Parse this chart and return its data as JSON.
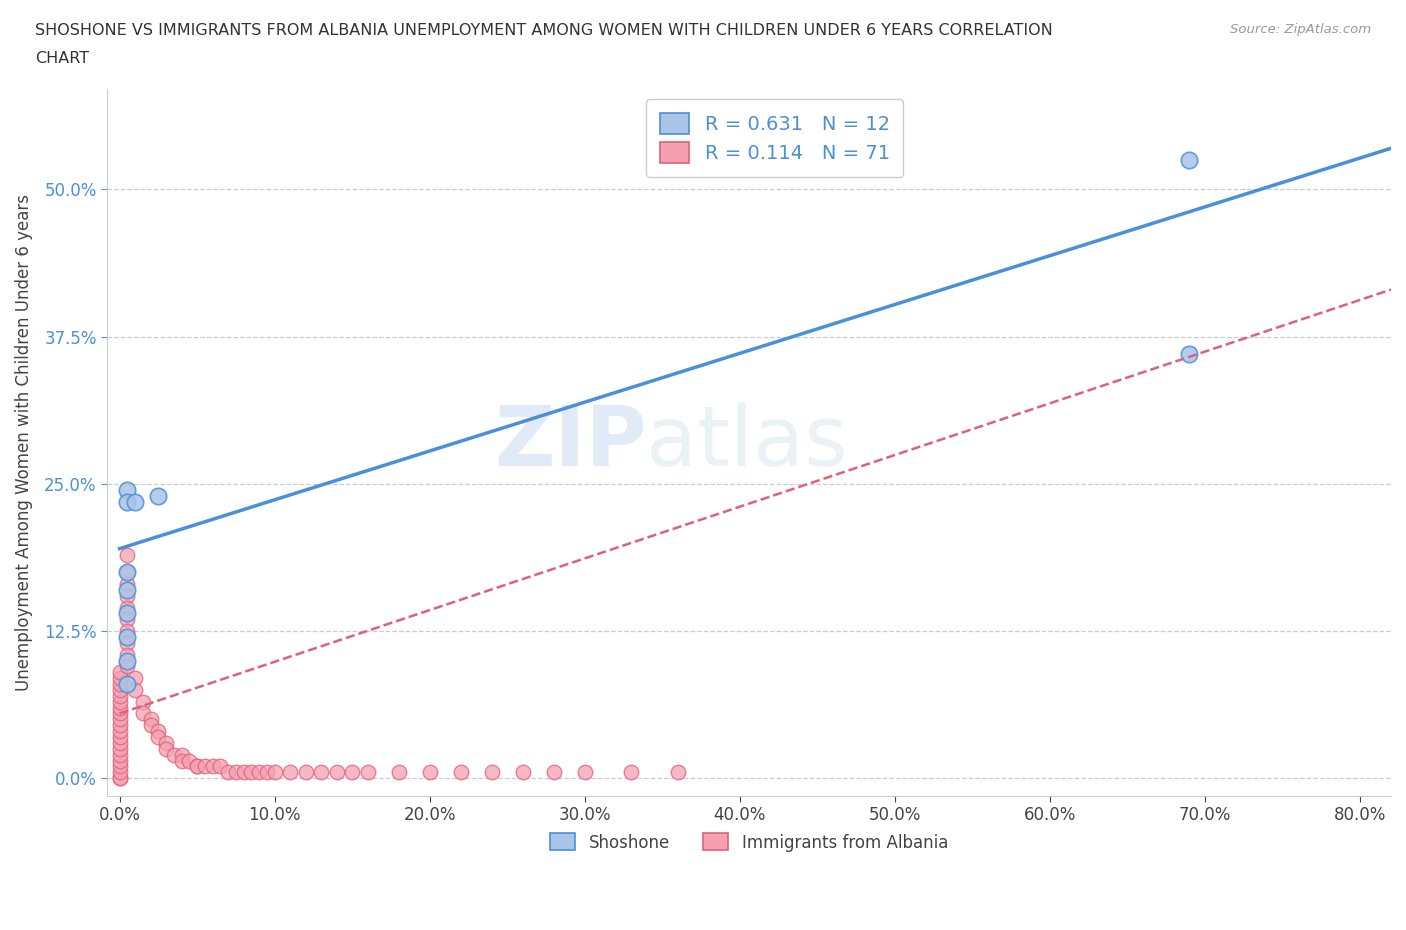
{
  "title_line1": "SHOSHONE VS IMMIGRANTS FROM ALBANIA UNEMPLOYMENT AMONG WOMEN WITH CHILDREN UNDER 6 YEARS CORRELATION",
  "title_line2": "CHART",
  "source": "Source: ZipAtlas.com",
  "ylabel": "Unemployment Among Women with Children Under 6 years",
  "background_color": "#ffffff",
  "shoshone_color": "#aac4e8",
  "shoshone_line_color": "#4a90d9",
  "albania_color": "#f4a0b0",
  "albania_line_color": "#e0607a",
  "watermark_zip": "ZIP",
  "watermark_atlas": "atlas",
  "legend_R1": "0.631",
  "legend_N1": "12",
  "legend_R2": "0.114",
  "legend_N2": "71",
  "shoshone_x": [
    0.005,
    0.005,
    0.005,
    0.005,
    0.005,
    0.005,
    0.005,
    0.005,
    0.01,
    0.025,
    0.69,
    0.69
  ],
  "shoshone_y": [
    0.245,
    0.235,
    0.175,
    0.16,
    0.14,
    0.12,
    0.1,
    0.08,
    0.235,
    0.24,
    0.36,
    0.525
  ],
  "albania_x": [
    0.0,
    0.0,
    0.0,
    0.0,
    0.0,
    0.0,
    0.0,
    0.0,
    0.0,
    0.0,
    0.0,
    0.0,
    0.0,
    0.0,
    0.0,
    0.0,
    0.0,
    0.0,
    0.0,
    0.0,
    0.005,
    0.005,
    0.005,
    0.005,
    0.005,
    0.005,
    0.005,
    0.005,
    0.005,
    0.005,
    0.01,
    0.01,
    0.015,
    0.015,
    0.02,
    0.02,
    0.025,
    0.025,
    0.03,
    0.03,
    0.035,
    0.04,
    0.04,
    0.045,
    0.05,
    0.05,
    0.055,
    0.06,
    0.065,
    0.07,
    0.075,
    0.08,
    0.085,
    0.09,
    0.095,
    0.1,
    0.11,
    0.12,
    0.13,
    0.14,
    0.15,
    0.16,
    0.18,
    0.2,
    0.22,
    0.24,
    0.26,
    0.28,
    0.3,
    0.33,
    0.36
  ],
  "albania_y": [
    0.0,
    0.0,
    0.005,
    0.01,
    0.015,
    0.02,
    0.025,
    0.03,
    0.035,
    0.04,
    0.045,
    0.05,
    0.055,
    0.06,
    0.065,
    0.07,
    0.075,
    0.08,
    0.085,
    0.09,
    0.19,
    0.175,
    0.165,
    0.155,
    0.145,
    0.135,
    0.125,
    0.115,
    0.105,
    0.095,
    0.085,
    0.075,
    0.065,
    0.055,
    0.05,
    0.045,
    0.04,
    0.035,
    0.03,
    0.025,
    0.02,
    0.02,
    0.015,
    0.015,
    0.01,
    0.01,
    0.01,
    0.01,
    0.01,
    0.005,
    0.005,
    0.005,
    0.005,
    0.005,
    0.005,
    0.005,
    0.005,
    0.005,
    0.005,
    0.005,
    0.005,
    0.005,
    0.005,
    0.005,
    0.005,
    0.005,
    0.005,
    0.005,
    0.005,
    0.005,
    0.005
  ],
  "xlim": [
    -0.008,
    0.82
  ],
  "ylim": [
    -0.015,
    0.585
  ],
  "xticks": [
    0.0,
    0.1,
    0.2,
    0.3,
    0.4,
    0.5,
    0.6,
    0.7,
    0.8
  ],
  "yticks": [
    0.0,
    0.125,
    0.25,
    0.375,
    0.5
  ],
  "grid_color": "#cccccc",
  "blue_trend_x0": 0.0,
  "blue_trend_y0": 0.195,
  "blue_trend_x1": 0.82,
  "blue_trend_y1": 0.535,
  "pink_trend_x0": 0.0,
  "pink_trend_y0": 0.055,
  "pink_trend_x1": 0.82,
  "pink_trend_y1": 0.415
}
